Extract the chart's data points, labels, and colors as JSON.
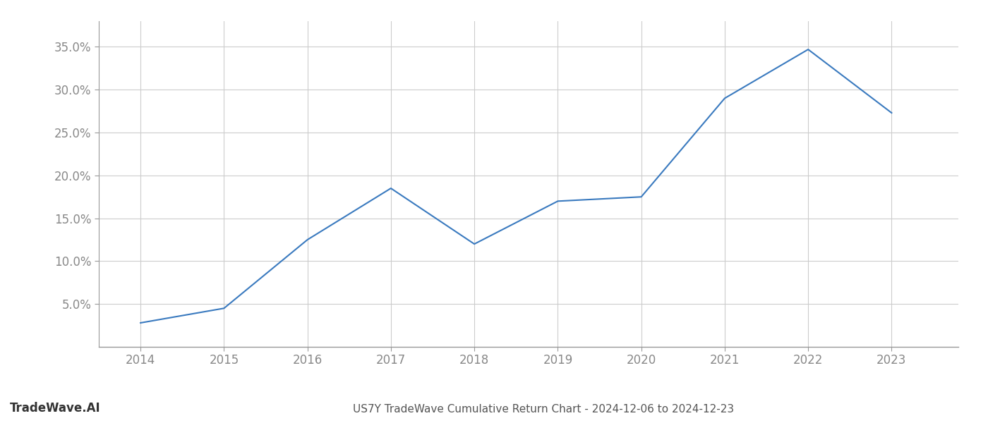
{
  "x_values": [
    2014,
    2015,
    2016,
    2017,
    2018,
    2019,
    2020,
    2021,
    2022,
    2023
  ],
  "y_values": [
    2.8,
    4.5,
    12.5,
    18.5,
    12.0,
    17.0,
    17.5,
    29.0,
    34.7,
    27.3
  ],
  "line_color": "#3a7abf",
  "line_width": 1.5,
  "title": "US7Y TradeWave Cumulative Return Chart - 2024-12-06 to 2024-12-23",
  "watermark": "TradeWave.AI",
  "xlim": [
    2013.5,
    2023.8
  ],
  "ylim": [
    0,
    38
  ],
  "yticks": [
    5.0,
    10.0,
    15.0,
    20.0,
    25.0,
    30.0,
    35.0
  ],
  "xticks": [
    2014,
    2015,
    2016,
    2017,
    2018,
    2019,
    2020,
    2021,
    2022,
    2023
  ],
  "grid_color": "#cccccc",
  "background_color": "#ffffff",
  "tick_label_color": "#888888",
  "title_color": "#555555",
  "watermark_color": "#333333",
  "title_fontsize": 11,
  "tick_fontsize": 12,
  "watermark_fontsize": 12
}
